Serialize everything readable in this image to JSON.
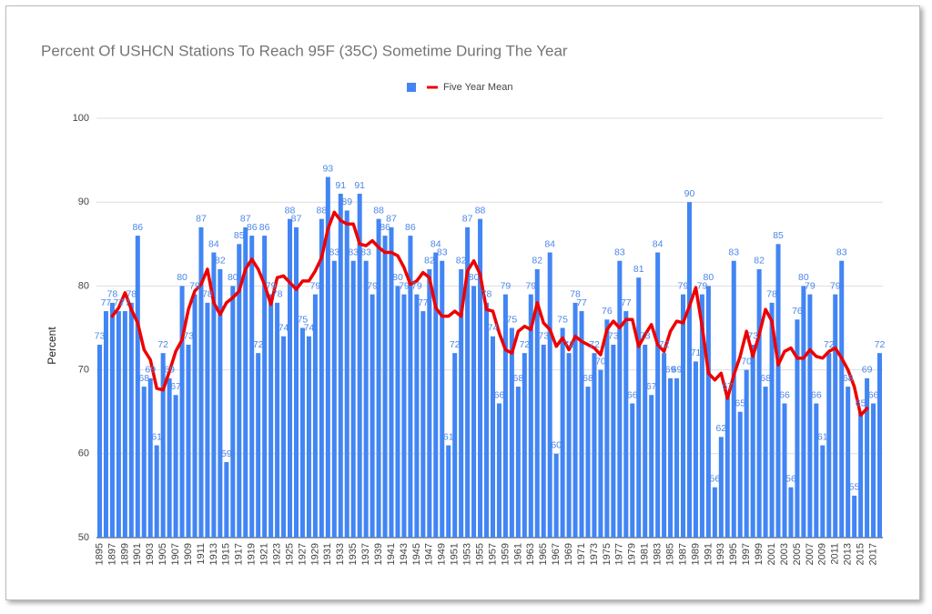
{
  "chart_data": {
    "type": "bar",
    "title": "Percent Of USHCN Stations To Reach 95F (35C) Sometime During The Year",
    "y_label": "Percent",
    "categories": [
      "1895",
      null,
      "1897",
      null,
      "1899",
      null,
      "1901",
      null,
      "1903",
      null,
      "1905",
      null,
      "1907",
      null,
      "1909",
      null,
      "1911",
      null,
      "1913",
      null,
      "1915",
      null,
      "1917",
      null,
      "1919",
      null,
      "1921",
      null,
      "1923",
      null,
      "1925",
      null,
      "1927",
      null,
      "1929",
      null,
      "1931",
      null,
      "1933",
      null,
      "1935",
      null,
      "1937",
      null,
      "1939",
      null,
      "1941",
      null,
      "1943",
      null,
      "1945",
      null,
      "1947",
      null,
      "1949",
      null,
      "1951",
      null,
      "1953",
      null,
      "1955",
      null,
      "1957",
      null,
      "1959",
      null,
      "1961",
      null,
      "1963",
      null,
      "1965",
      null,
      "1967",
      null,
      "1969",
      null,
      "1971",
      null,
      "1973",
      null,
      "1975",
      null,
      "1977",
      null,
      "1979",
      null,
      "1981",
      null,
      "1983",
      null,
      "1985",
      null,
      "1987",
      null,
      "1989",
      null,
      "1991",
      null,
      "1993",
      null,
      "1995",
      null,
      "1997",
      null,
      "1999",
      null,
      "2001",
      null,
      "2003",
      null,
      "2005",
      null,
      "2007",
      null,
      "2009",
      null,
      "2011",
      null,
      "2013",
      null,
      "2015",
      null,
      "2017",
      null
    ],
    "series": [
      {
        "type": "bar",
        "color": "#4285f4",
        "values": [
          73,
          77,
          78,
          77,
          77,
          78,
          86,
          68,
          69,
          61,
          72,
          69,
          67,
          80,
          73,
          79,
          87,
          78,
          84,
          82,
          59,
          80,
          85,
          87,
          86,
          72,
          86,
          79,
          78,
          74,
          88,
          87,
          75,
          74,
          79,
          88,
          93,
          83,
          91,
          89,
          83,
          91,
          83,
          79,
          88,
          86,
          87,
          80,
          79,
          86,
          79,
          77,
          82,
          84,
          83,
          61,
          72,
          82,
          87,
          80,
          88,
          78,
          74,
          66,
          79,
          75,
          68,
          72,
          79,
          82,
          73,
          84,
          60,
          75,
          72,
          78,
          77,
          68,
          72,
          70,
          76,
          73,
          83,
          77,
          66,
          81,
          73,
          67,
          84,
          72,
          69,
          69,
          79,
          90,
          71,
          79,
          80,
          56,
          62,
          67,
          83,
          65,
          70,
          73,
          82,
          68,
          78,
          85,
          66,
          56,
          76,
          80,
          79,
          66,
          61,
          72,
          79,
          83,
          68,
          55,
          65,
          69,
          66,
          72
        ]
      },
      {
        "type": "line",
        "name": "Five Year Mean",
        "color": "#ee0000",
        "values": [
          null,
          null,
          76.4,
          77.4,
          79.2,
          77.2,
          75.6,
          72.4,
          71.2,
          67.8,
          67.6,
          69.8,
          72.2,
          73.6,
          77.2,
          79.4,
          80.2,
          82,
          78,
          76.6,
          78,
          78.6,
          79.4,
          82,
          83.2,
          82,
          80.2,
          77.8,
          81,
          81.2,
          80.4,
          79.6,
          80.6,
          80.6,
          81.8,
          83.4,
          86.8,
          88.8,
          87.8,
          87.4,
          87.4,
          85,
          84.8,
          85.4,
          84.6,
          84,
          84,
          83.6,
          82.2,
          80.2,
          80.6,
          81.6,
          81,
          77.4,
          76.4,
          76.4,
          77,
          76.4,
          81.8,
          83,
          81.4,
          77.2,
          77,
          74.4,
          72.4,
          72,
          74.6,
          75.2,
          74.8,
          78,
          75.6,
          74.8,
          72.8,
          73.8,
          72.4,
          74,
          73.4,
          73,
          72.6,
          71.8,
          74.8,
          75.8,
          75,
          76,
          76,
          72.8,
          74.2,
          75.4,
          73,
          72.2,
          74.6,
          75.8,
          75.6,
          77.6,
          79.8,
          75.2,
          69.6,
          68.8,
          69.6,
          66.6,
          69.4,
          71.6,
          74.6,
          71.6,
          74.2,
          77.2,
          75.8,
          70.6,
          72.2,
          72.6,
          71.4,
          71.4,
          72.4,
          71.6,
          71.4,
          72.2,
          72.6,
          71.4,
          70,
          68,
          64.6,
          65.4,
          null,
          null
        ]
      }
    ],
    "ylim": [
      50,
      100
    ],
    "yticks": [
      50,
      60,
      70,
      80,
      90,
      100
    ],
    "grid": true,
    "legend": "top"
  }
}
